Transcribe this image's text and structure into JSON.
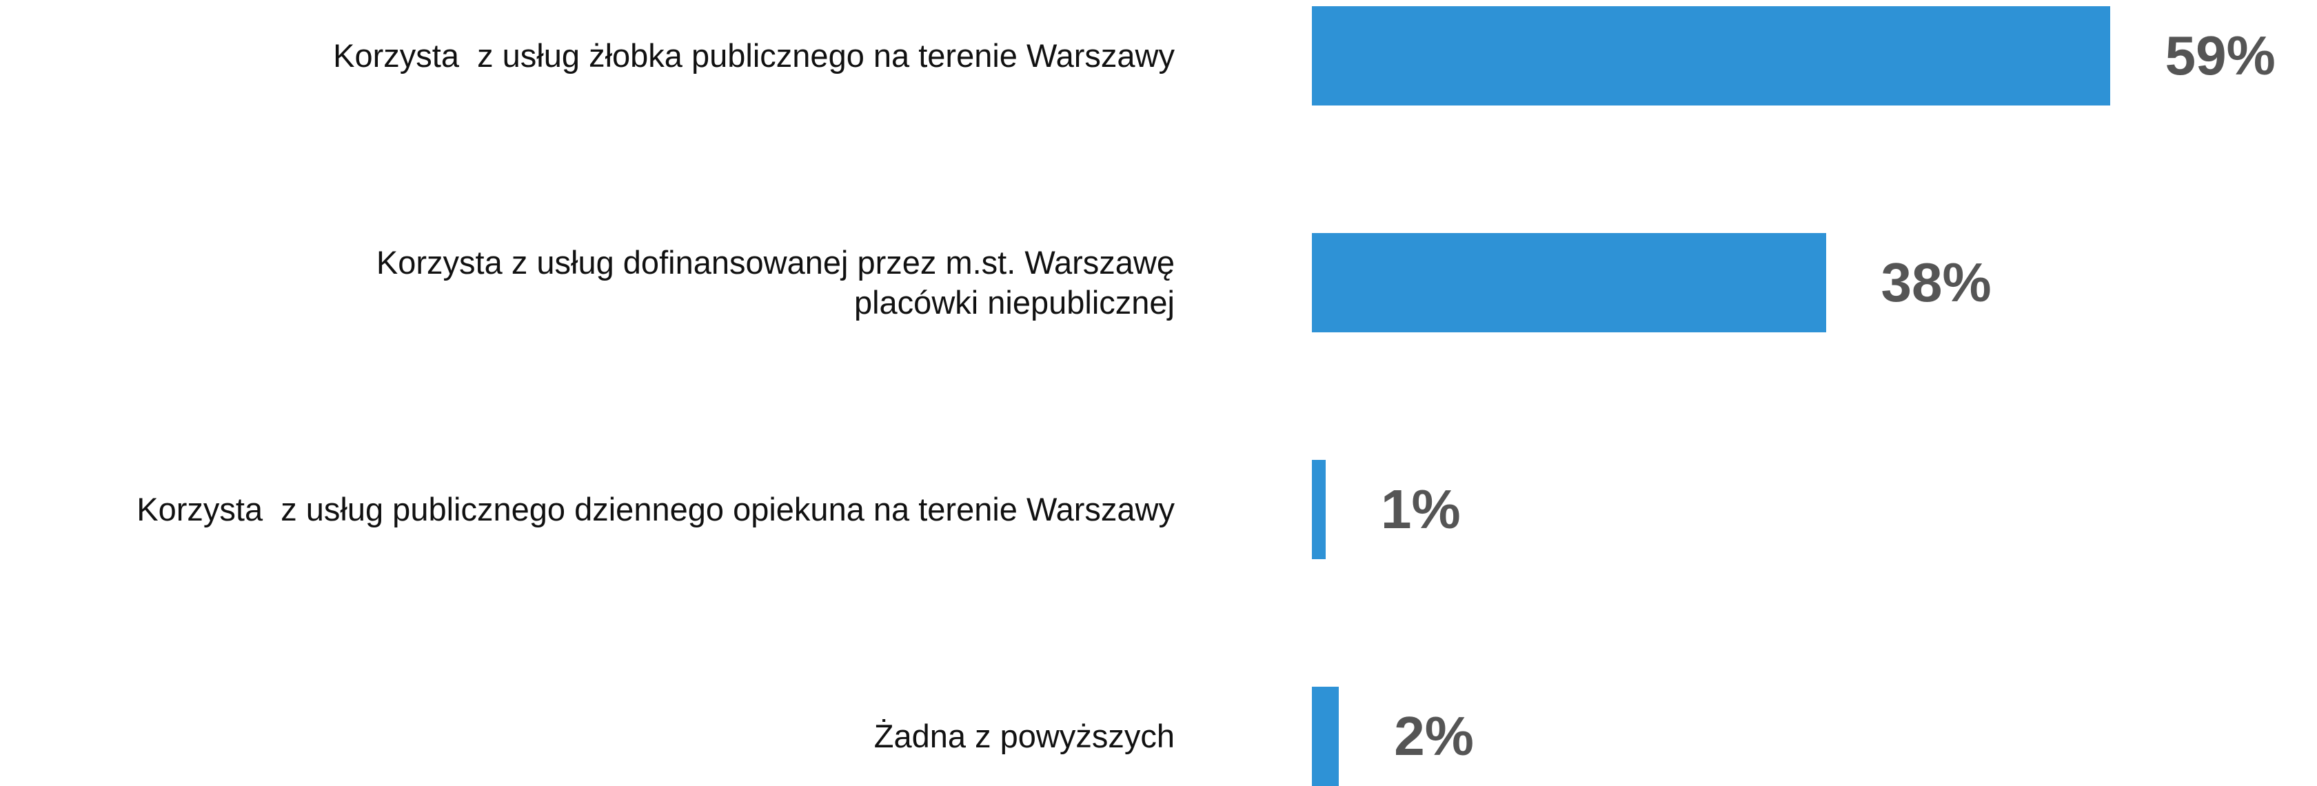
{
  "chart_data": {
    "type": "bar",
    "orientation": "horizontal",
    "categories": [
      "Korzysta  z usług żłobka publicznego na terenie Warszawy",
      "Korzysta z usług dofinansowanej przez m.st. Warszawę\nplacówki niepublicznej",
      "Korzysta  z usług publicznego dziennego opiekuna na terenie Warszawy",
      "Żadna z powyższych"
    ],
    "values": [
      59,
      38,
      1,
      2
    ],
    "value_labels": [
      "59%",
      "38%",
      "1%",
      "2%"
    ],
    "color": "#2e92d6"
  }
}
